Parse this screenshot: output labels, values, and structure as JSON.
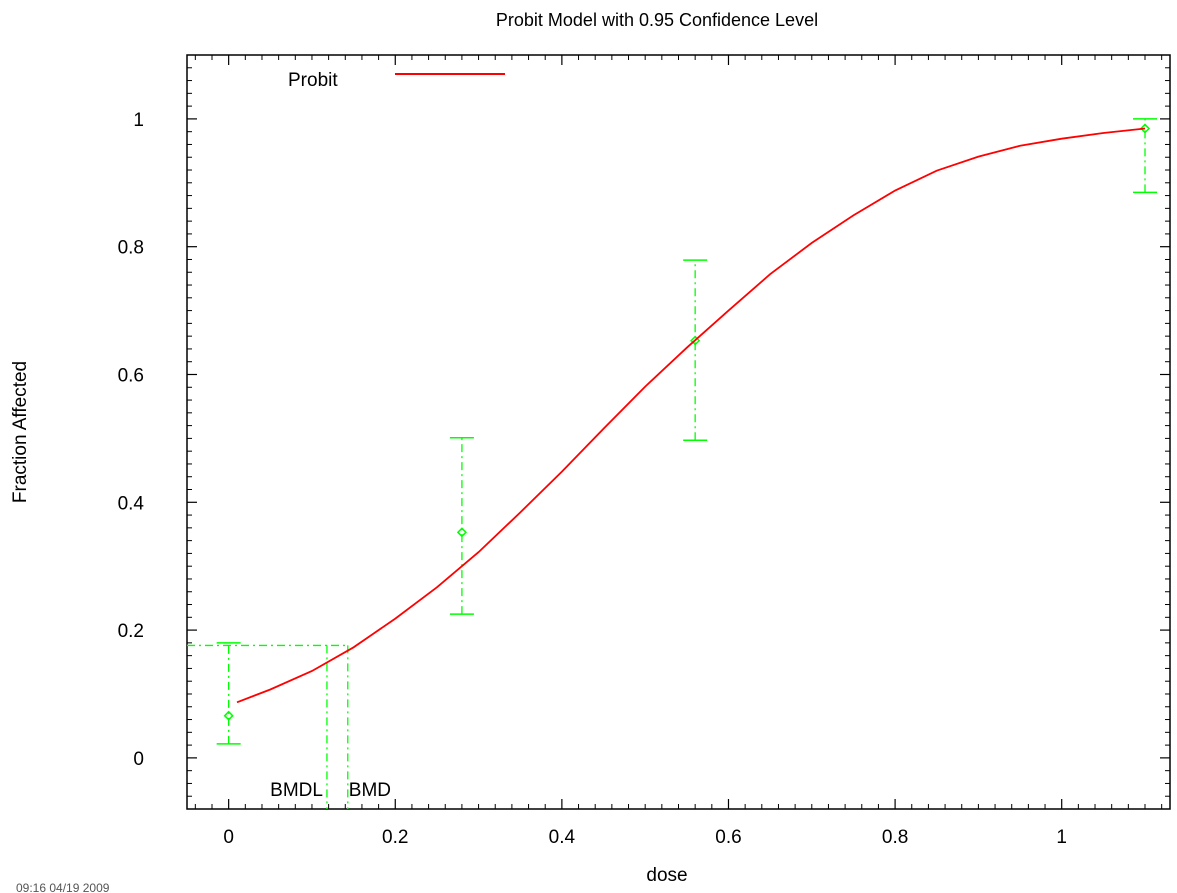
{
  "chart_data": {
    "type": "line",
    "title": "Probit Model with 0.95 Confidence Level",
    "xlabel": "dose",
    "ylabel": "Fraction Affected",
    "xlim": [
      -0.05,
      1.13
    ],
    "ylim": [
      -0.08,
      1.1
    ],
    "x_ticks": [
      {
        "value": 0,
        "label": "0"
      },
      {
        "value": 0.2,
        "label": "0.2"
      },
      {
        "value": 0.4,
        "label": "0.4"
      },
      {
        "value": 0.6,
        "label": "0.6"
      },
      {
        "value": 0.8,
        "label": "0.8"
      },
      {
        "value": 1,
        "label": "1"
      }
    ],
    "y_ticks": [
      {
        "value": 0,
        "label": "0"
      },
      {
        "value": 0.2,
        "label": "0.2"
      },
      {
        "value": 0.4,
        "label": "0.4"
      },
      {
        "value": 0.6,
        "label": "0.6"
      },
      {
        "value": 0.8,
        "label": "0.8"
      },
      {
        "value": 1,
        "label": "1"
      }
    ],
    "legend": {
      "position": "top-left",
      "entries": [
        {
          "label": "Probit",
          "color": "#ff0000"
        }
      ]
    },
    "series": [
      {
        "name": "Probit",
        "kind": "fitted-curve",
        "color": "#ff0000",
        "x": [
          0.01,
          0.05,
          0.1,
          0.15,
          0.2,
          0.25,
          0.3,
          0.35,
          0.4,
          0.45,
          0.5,
          0.55,
          0.6,
          0.65,
          0.7,
          0.75,
          0.8,
          0.85,
          0.9,
          0.95,
          1.0,
          1.05,
          1.1
        ],
        "y": [
          0.087,
          0.107,
          0.136,
          0.173,
          0.218,
          0.267,
          0.322,
          0.384,
          0.448,
          0.515,
          0.581,
          0.642,
          0.7,
          0.757,
          0.806,
          0.849,
          0.888,
          0.919,
          0.941,
          0.958,
          0.969,
          0.978,
          0.985
        ]
      }
    ],
    "observed": {
      "color": "#00ff00",
      "points": [
        {
          "x": 0.0,
          "y": 0.066,
          "lower": 0.022,
          "upper": 0.18
        },
        {
          "x": 0.28,
          "y": 0.353,
          "lower": 0.225,
          "upper": 0.501
        },
        {
          "x": 0.56,
          "y": 0.653,
          "lower": 0.497,
          "upper": 0.779
        },
        {
          "x": 1.1,
          "y": 0.985,
          "lower": 0.885,
          "upper": 1.0
        }
      ]
    },
    "benchmark": {
      "bmr_level": 0.176,
      "bmdl": {
        "label": "BMDL",
        "x": 0.118
      },
      "bmd": {
        "label": "BMD",
        "x": 0.143
      }
    },
    "grid": false
  },
  "footer_note": "09:16 04/19 2009"
}
